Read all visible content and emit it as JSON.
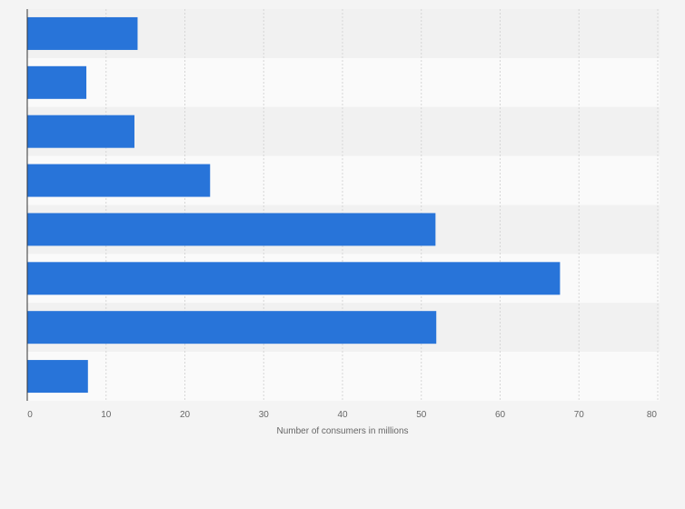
{
  "chart_data": {
    "type": "bar",
    "orientation": "horizontal",
    "title": "",
    "xlabel": "Number of consumers in millions",
    "ylabel": "",
    "categories": [
      "",
      "",
      "",
      "",
      "",
      "",
      "",
      ""
    ],
    "values": [
      14.0,
      7.5,
      13.6,
      23.2,
      51.8,
      67.6,
      51.9,
      7.7
    ],
    "xlim": [
      0,
      80
    ],
    "xticks": [
      0,
      10,
      20,
      30,
      40,
      50,
      60,
      70,
      80
    ],
    "grid": true,
    "legend": "none",
    "bar_color": "#2874d9"
  },
  "colors": {
    "background": "#f4f4f4",
    "band_dark": "#f1f1f1",
    "band_light": "#fafafa",
    "gridline": "#d6d6d6",
    "axis": "#333333"
  }
}
